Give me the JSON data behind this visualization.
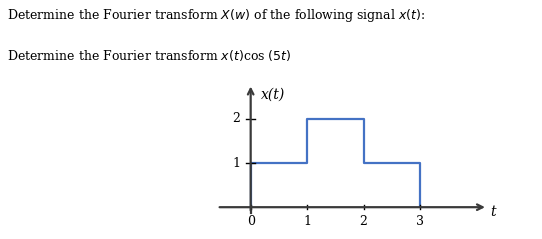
{
  "title_line1": "Determine the Fourier transform $X(w)$ of the following signal $x(t)$:",
  "title_line2": "Determine the Fourier transform $x(t)$cos $(5t)$",
  "xlabel": "t",
  "ylabel": "x(t)",
  "step_x": [
    0,
    0,
    1,
    1,
    2,
    2,
    3,
    3
  ],
  "step_y": [
    0,
    1,
    1,
    2,
    2,
    1,
    1,
    0
  ],
  "xticks": [
    0,
    1,
    2,
    3
  ],
  "yticks": [
    1,
    2
  ],
  "xlim": [
    -0.6,
    4.2
  ],
  "ylim": [
    -0.45,
    2.8
  ],
  "signal_color": "#4472C4",
  "axis_color": "#3a3a3a",
  "text_color": "#000000",
  "background_color": "#ffffff",
  "font_size_title": 9.0,
  "font_size_label": 10,
  "font_size_tick": 9
}
